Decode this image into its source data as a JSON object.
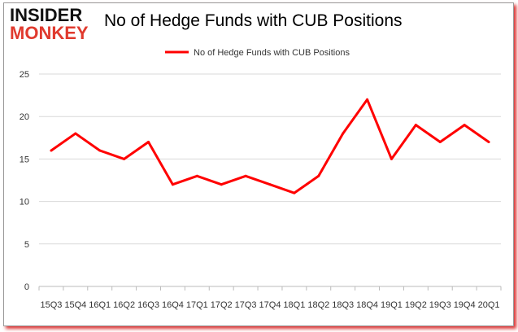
{
  "logo": {
    "line1": "INSIDER",
    "line2": "MONKEY"
  },
  "chart_data": {
    "type": "line",
    "title": "No of Hedge Funds with CUB Positions",
    "xlabel": "",
    "ylabel": "",
    "categories": [
      "15Q3",
      "15Q4",
      "16Q1",
      "16Q2",
      "16Q3",
      "16Q4",
      "17Q1",
      "17Q2",
      "17Q3",
      "17Q4",
      "18Q1",
      "18Q2",
      "18Q3",
      "18Q4",
      "19Q1",
      "19Q2",
      "19Q3",
      "19Q4",
      "20Q1"
    ],
    "series": [
      {
        "name": "No of Hedge Funds with CUB Positions",
        "color": "#ff0000",
        "values": [
          16,
          18,
          16,
          15,
          17,
          12,
          13,
          12,
          13,
          12,
          11,
          13,
          18,
          22,
          15,
          19,
          17,
          19,
          17
        ]
      }
    ],
    "ylim": [
      0,
      25
    ],
    "yticks": [
      0,
      5,
      10,
      15,
      20,
      25
    ],
    "grid": true,
    "legend": "top-center"
  }
}
